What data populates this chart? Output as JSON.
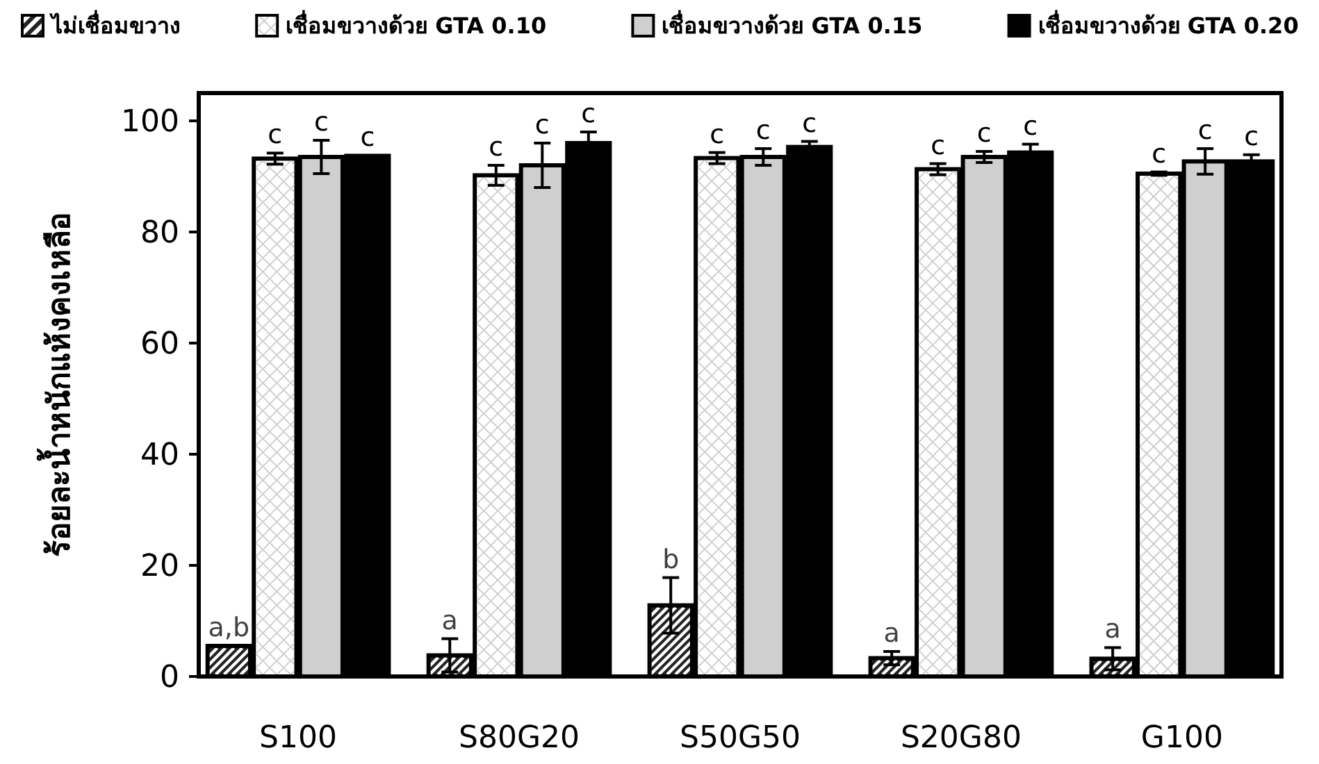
{
  "chart_data": {
    "type": "bar",
    "ylabel": "ร้อยละน้ำหนักแห้งคงเหลือ",
    "categories": [
      "S100",
      "S80G20",
      "S50G50",
      "S20G80",
      "G100"
    ],
    "ylim": [
      0,
      105
    ],
    "yticks": [
      0,
      20,
      40,
      60,
      80,
      100
    ],
    "grid": false,
    "legend": "top",
    "series": [
      {
        "name": "ไม่เชื่อมขวาง",
        "color": "#222222",
        "values": [
          5.5,
          3.8,
          12.8,
          3.3,
          3.2
        ],
        "errors": [
          null,
          3,
          5,
          1.2,
          2
        ],
        "value_labels": [
          "a,b",
          "a",
          "b",
          "a",
          "a"
        ]
      },
      {
        "name": "เชื่อมขวางด้วย GTA 0.10",
        "color": "#ffffff",
        "values": [
          93.2,
          90.2,
          93.3,
          91.3,
          90.5
        ],
        "errors": [
          1,
          1.8,
          1,
          1,
          0.3
        ],
        "value_labels": [
          "c",
          "c",
          "c",
          "c",
          "c"
        ]
      },
      {
        "name": "เชื่อมขวางด้วย GTA 0.15",
        "color": "#d0cfd0",
        "values": [
          93.5,
          92,
          93.5,
          93.5,
          92.7
        ],
        "errors": [
          3,
          4,
          1.5,
          1,
          2.3
        ],
        "value_labels": [
          "c",
          "c",
          "c",
          "c",
          "c"
        ]
      },
      {
        "name": "เชื่อมขวางด้วย GTA 0.20",
        "color": "#000000",
        "values": [
          93.7,
          96,
          95.3,
          94.3,
          92.7
        ],
        "errors": [
          null,
          2,
          1,
          1.5,
          1.2
        ],
        "value_labels": [
          "c",
          "c",
          "c",
          "c",
          "c"
        ]
      }
    ]
  }
}
